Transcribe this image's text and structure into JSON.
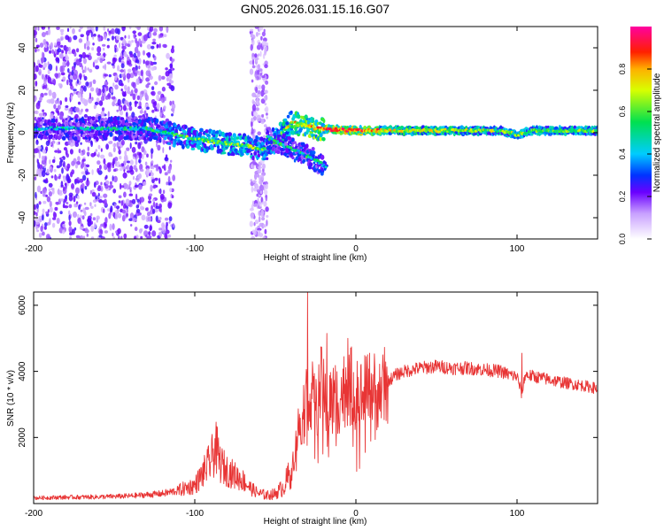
{
  "title": "GN05.2026.031.15.16.G07",
  "chart_data": [
    {
      "type": "heatmap",
      "name": "spectrogram",
      "xlabel": "Height of straight line (km)",
      "ylabel": "Frequency (Hz)",
      "xlim": [
        -200,
        150
      ],
      "ylim": [
        -50,
        50
      ],
      "xticks": [
        -200,
        -100,
        0,
        100
      ],
      "yticks": [
        -40,
        -20,
        0,
        20,
        40
      ],
      "colorbar": {
        "label": "Normalized spectral amplitude",
        "range": [
          0.0,
          1.0
        ],
        "ticks": [
          0.0,
          0.2,
          0.4,
          0.6,
          0.8
        ]
      },
      "features": [
        {
          "description": "scattered weak noise",
          "x_range": [
            -200,
            -113
          ],
          "y_range": [
            -50,
            50
          ],
          "amplitude": 0.2
        },
        {
          "description": "weak noise band",
          "x_range": [
            -65,
            -55
          ],
          "y_range": [
            -50,
            50
          ],
          "amplitude": 0.15
        },
        {
          "description": "main signal ridge",
          "x_points": [
            -200,
            -130,
            -100,
            -70,
            -55,
            -40,
            -25,
            0,
            20,
            60,
            90,
            100,
            110,
            150
          ],
          "y_points": [
            2,
            2,
            -3,
            -6,
            -8,
            5,
            2,
            1,
            1,
            1,
            1,
            -1,
            1,
            1
          ],
          "amplitude": [
            0.25,
            0.3,
            0.42,
            0.45,
            0.4,
            0.55,
            0.65,
            0.75,
            0.55,
            0.5,
            0.45,
            0.45,
            0.45,
            0.45
          ]
        },
        {
          "description": "secondary descending branch",
          "x_points": [
            -55,
            -45,
            -35,
            -25,
            -18
          ],
          "y_points": [
            -2,
            -6,
            -9,
            -13,
            -16
          ],
          "amplitude": 0.3
        }
      ]
    },
    {
      "type": "line",
      "name": "snr",
      "xlabel": "Height of straight line (km)",
      "ylabel": "SNR (10 * v/v)",
      "xlim": [
        -200,
        150
      ],
      "ylim": [
        0,
        6400
      ],
      "xticks": [
        -200,
        -100,
        0,
        100
      ],
      "yticks": [
        2000,
        4000,
        6000
      ],
      "series": [
        {
          "name": "SNR",
          "color": "#e83535",
          "x": [
            -200,
            -180,
            -160,
            -140,
            -120,
            -110,
            -100,
            -95,
            -90,
            -87,
            -84,
            -80,
            -75,
            -70,
            -65,
            -60,
            -55,
            -50,
            -45,
            -40,
            -36,
            -32,
            -30,
            -28,
            -25,
            -22,
            -20,
            -18,
            -15,
            -12,
            -10,
            -8,
            -5,
            -2,
            0,
            5,
            10,
            15,
            20,
            25,
            30,
            40,
            50,
            60,
            70,
            80,
            90,
            95,
            100,
            103,
            105,
            110,
            120,
            130,
            140,
            150
          ],
          "y": [
            170,
            190,
            200,
            230,
            300,
            400,
            550,
            900,
            1300,
            1700,
            1200,
            1000,
            850,
            700,
            450,
            300,
            250,
            300,
            500,
            1000,
            2200,
            3000,
            3300,
            3400,
            2800,
            3500,
            3700,
            2900,
            3200,
            3300,
            3200,
            3400,
            3600,
            3500,
            3200,
            3300,
            3500,
            3300,
            3700,
            3900,
            4000,
            4100,
            4150,
            4100,
            4100,
            4050,
            4000,
            3900,
            3850,
            3300,
            3900,
            3850,
            3750,
            3650,
            3580,
            3480
          ],
          "spikes": [
            {
              "x": -87,
              "y": 2050
            },
            {
              "x": -30,
              "y": 6400
            },
            {
              "x": -18,
              "y": 5150
            },
            {
              "x": -5,
              "y": 5000
            },
            {
              "x": 103,
              "y": 4550
            }
          ]
        }
      ]
    }
  ]
}
